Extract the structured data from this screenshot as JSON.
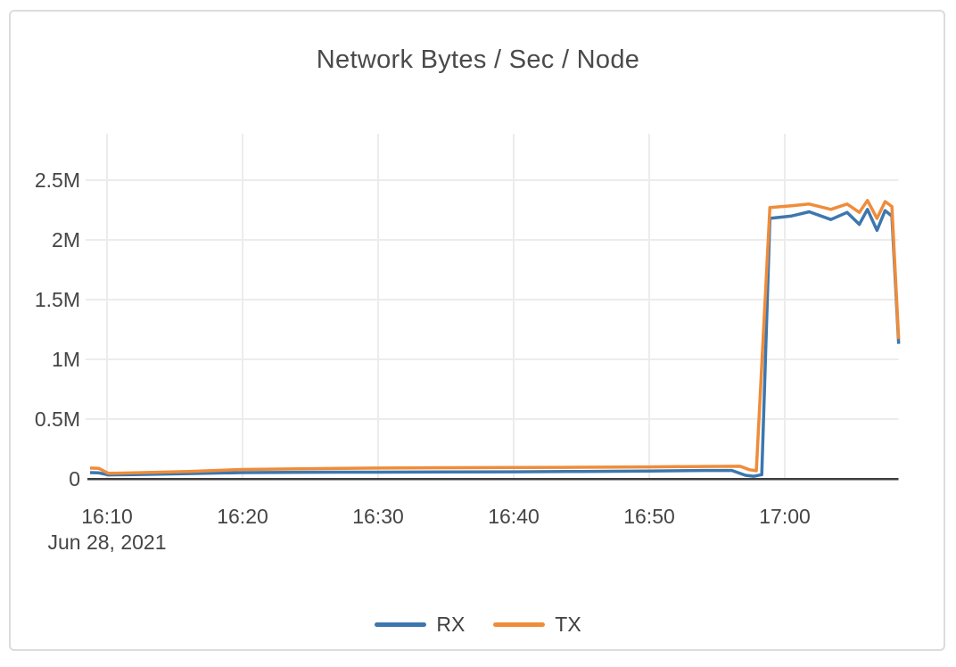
{
  "card": {
    "title": "Network Bytes / Sec / Node"
  },
  "colors": {
    "rx_line": "#3c77ae",
    "tx_line": "#ef8c3a",
    "gridline": "#ececec",
    "axis_line": "#3d3d3d",
    "axis_text": "#454545",
    "card_border": "#dcdcdc",
    "background": "#ffffff"
  },
  "chart_data": {
    "type": "line",
    "title": "Network Bytes / Sec / Node",
    "grid": true,
    "legend_position": "bottom",
    "x_axis": {
      "unit": "time (minutes after 16:00), Jun 28, 2021",
      "ticks": [
        10,
        20,
        30,
        40,
        50,
        60
      ],
      "tick_labels": [
        "16:10",
        "16:20",
        "16:30",
        "16:40",
        "16:50",
        "17:00"
      ],
      "date_label": "Jun 28, 2021"
    },
    "y_axis": {
      "unit": "bytes/sec/node",
      "ticks": [
        0,
        500000,
        1000000,
        1500000,
        2000000,
        2500000
      ],
      "tick_labels": [
        "0",
        "0.5M",
        "1M",
        "1.5M",
        "2M",
        "2.5M"
      ]
    },
    "xlim": [
      8.75,
      68.4
    ],
    "ylim": [
      0,
      2888000
    ],
    "series": [
      {
        "name": "RX",
        "color": "#3c77ae",
        "points": [
          [
            8.75,
            52000
          ],
          [
            9.4,
            50000
          ],
          [
            10.1,
            33000
          ],
          [
            12,
            36000
          ],
          [
            16,
            44000
          ],
          [
            20,
            52000
          ],
          [
            25,
            55000
          ],
          [
            30,
            56000
          ],
          [
            35,
            58000
          ],
          [
            40,
            59000
          ],
          [
            45,
            62000
          ],
          [
            50,
            66000
          ],
          [
            54,
            70000
          ],
          [
            56.1,
            70000
          ],
          [
            57.1,
            30000
          ],
          [
            57.7,
            22000
          ],
          [
            58.3,
            35000
          ],
          [
            58.9,
            2180000
          ],
          [
            60.5,
            2200000
          ],
          [
            61.8,
            2235000
          ],
          [
            63.4,
            2170000
          ],
          [
            64.6,
            2230000
          ],
          [
            65.5,
            2130000
          ],
          [
            66.1,
            2255000
          ],
          [
            66.8,
            2080000
          ],
          [
            67.4,
            2245000
          ],
          [
            67.9,
            2200000
          ],
          [
            68.4,
            1130000
          ]
        ]
      },
      {
        "name": "TX",
        "color": "#ef8c3a",
        "points": [
          [
            8.75,
            90000
          ],
          [
            9.4,
            87000
          ],
          [
            10.1,
            46000
          ],
          [
            12,
            50000
          ],
          [
            16,
            62000
          ],
          [
            20,
            78000
          ],
          [
            25,
            85000
          ],
          [
            30,
            90000
          ],
          [
            35,
            93000
          ],
          [
            40,
            95000
          ],
          [
            45,
            97000
          ],
          [
            50,
            100000
          ],
          [
            54,
            104000
          ],
          [
            56.7,
            105000
          ],
          [
            57.4,
            76000
          ],
          [
            57.9,
            68000
          ],
          [
            58.9,
            2270000
          ],
          [
            60.5,
            2285000
          ],
          [
            61.8,
            2300000
          ],
          [
            63.4,
            2255000
          ],
          [
            64.6,
            2300000
          ],
          [
            65.5,
            2230000
          ],
          [
            66.1,
            2330000
          ],
          [
            66.8,
            2180000
          ],
          [
            67.4,
            2320000
          ],
          [
            67.9,
            2280000
          ],
          [
            68.4,
            1170000
          ]
        ]
      }
    ]
  }
}
